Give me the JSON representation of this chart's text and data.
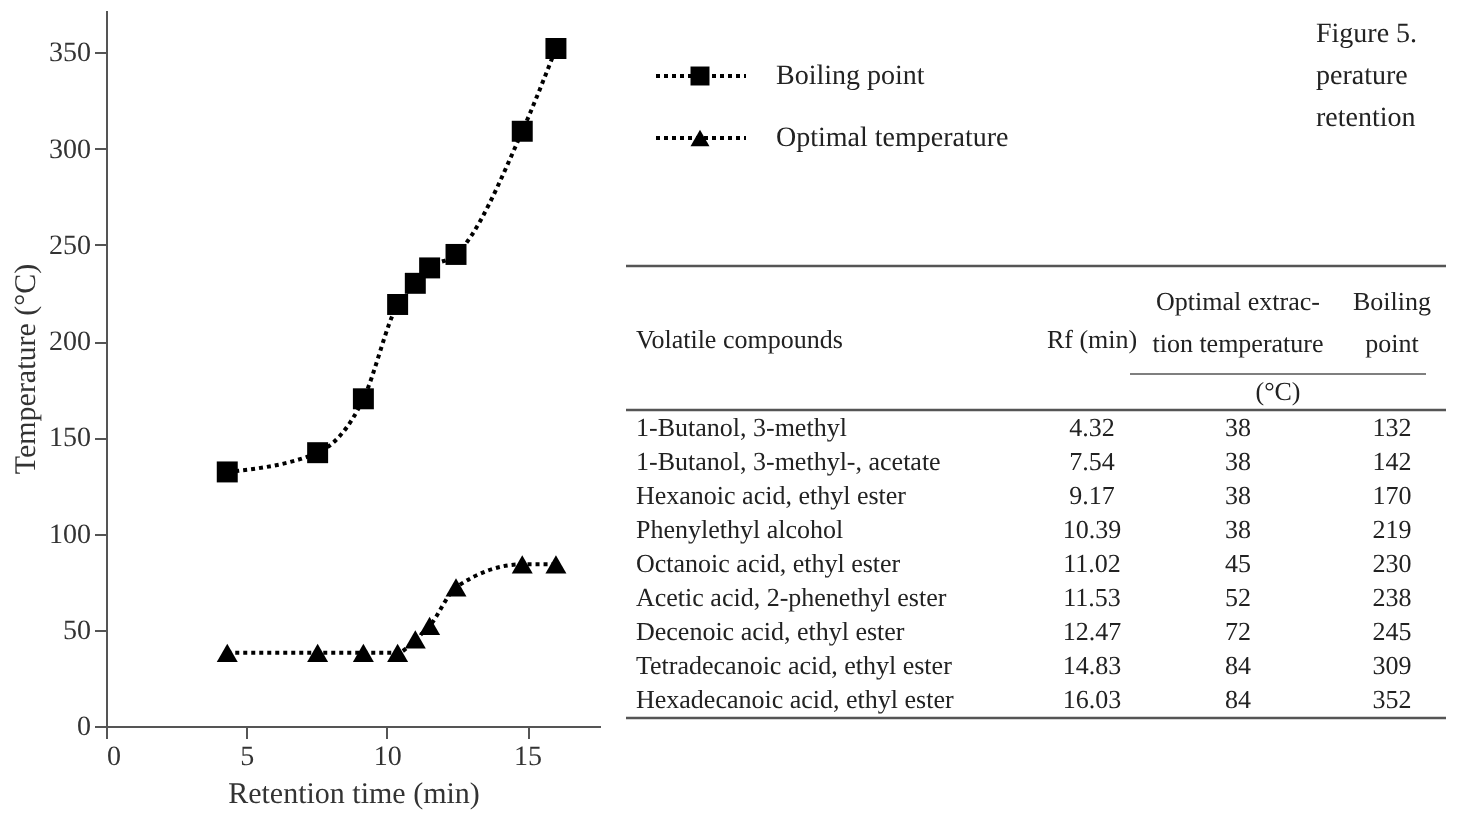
{
  "chart_data": {
    "type": "line",
    "xlabel": "Retention time (min)",
    "ylabel": "Temperature (°C)",
    "x": [
      4.32,
      7.54,
      9.17,
      10.39,
      11.02,
      11.53,
      12.47,
      14.83,
      16.03
    ],
    "series": [
      {
        "name": "Boiling point",
        "color": "#000000",
        "marker": "square",
        "values": [
          132,
          142,
          170,
          219,
          230,
          238,
          245,
          309,
          352
        ]
      },
      {
        "name": "Optimal temperature",
        "color": "#000000",
        "marker": "triangle",
        "values": [
          38,
          38,
          38,
          38,
          45,
          52,
          72,
          84,
          84
        ]
      }
    ],
    "xlim": [
      0,
      17.6
    ],
    "xticks": [
      0,
      5,
      10,
      15
    ],
    "ylim": [
      0,
      372
    ],
    "yticks": [
      0,
      50,
      100,
      150,
      200,
      250,
      300,
      350
    ],
    "grid": false,
    "legend": "right",
    "line_style": "dotted",
    "annotations": [
      "Volatile compounds",
      "Rf (min)",
      "Optimal extrac-",
      "tion temperature",
      "Boiling",
      "point",
      "(°C)",
      "1-Butanol, 3-methyl",
      "4.32",
      "38",
      "132",
      "1-Butanol, 3-methyl-, acetate",
      "7.54",
      "38",
      "142",
      "Hexanoic acid, ethyl ester",
      "9.17",
      "38",
      "170",
      "Phenylethyl alcohol",
      "10.39",
      "38",
      "219",
      "Octanoic acid, ethyl ester",
      "11.02",
      "45",
      "230",
      "Acetic acid, 2-phenethyl ester",
      "11.53",
      "52",
      "238",
      "Decenoic acid, ethyl ester",
      "12.47",
      "72",
      "245",
      "Tetradecanoic acid, ethyl ester",
      "14.83",
      "84",
      "309",
      "Hexadecanoic acid, ethyl ester",
      "16.03",
      "84",
      "352",
      "Figure 5.",
      "perature",
      "retention"
    ]
  }
}
